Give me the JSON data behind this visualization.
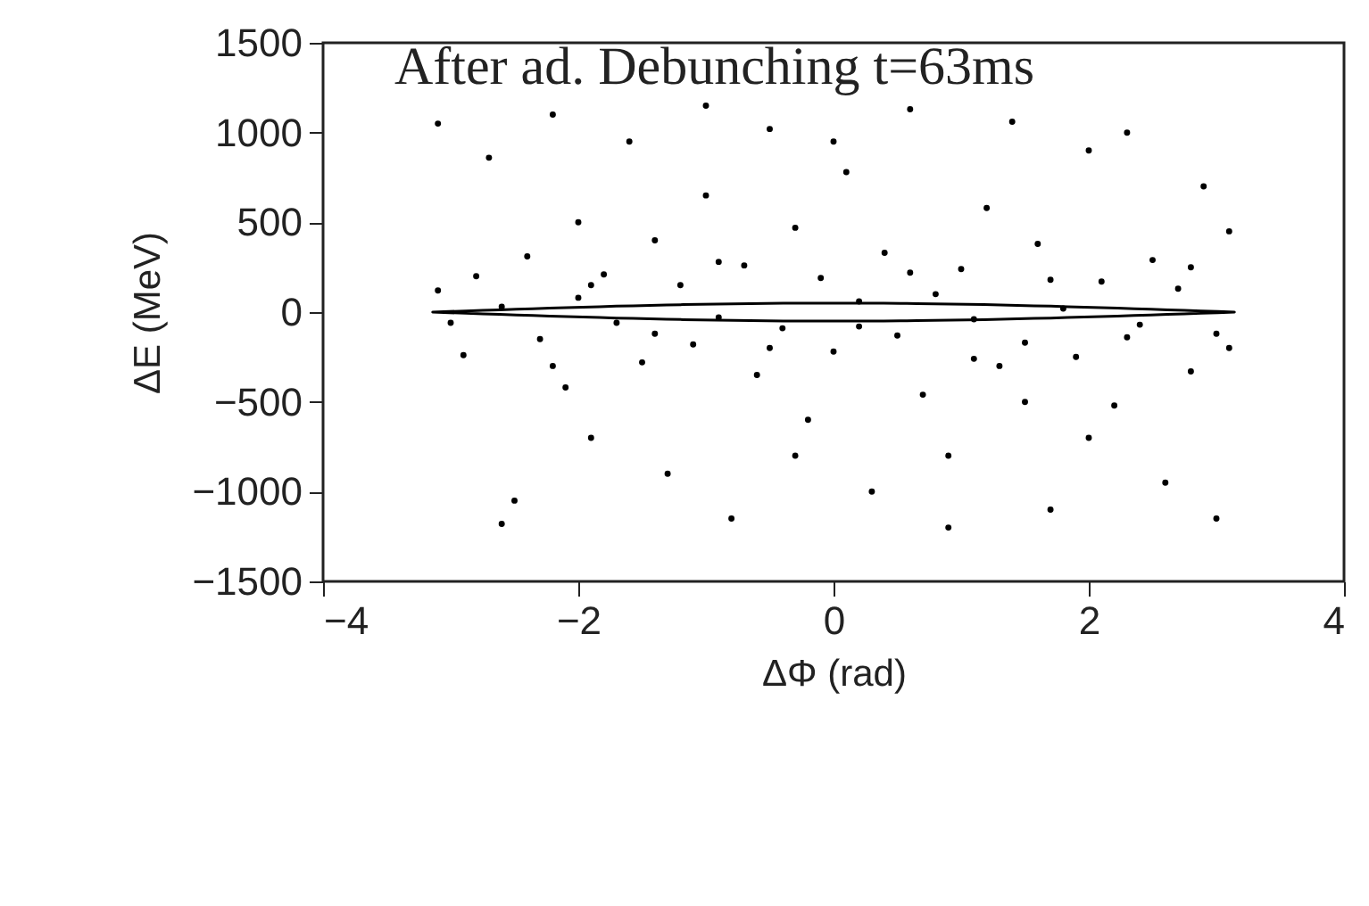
{
  "chart_data": {
    "type": "scatter",
    "title": "After ad. Debunching t=63ms",
    "xlabel": "ΔΦ (rad)",
    "ylabel": "ΔE (MeV)",
    "xlim": [
      -4,
      4
    ],
    "xticks": [
      -4,
      -2,
      0,
      2,
      4
    ],
    "ylim": [
      -1500,
      1500
    ],
    "yticks": [
      -1500,
      -1000,
      -500,
      0,
      500,
      1000,
      1500
    ],
    "grid": false,
    "marker": "circle",
    "series": [
      {
        "color": "#000000",
        "x": [
          -3.1,
          -2.9,
          -2.7,
          -2.6,
          -2.5,
          -2.4,
          -2.3,
          -2.2,
          -2.1,
          -2.0,
          -1.9,
          -1.8,
          -1.7,
          -1.6,
          -1.5,
          -1.4,
          -1.3,
          -1.2,
          -1.1,
          -1.0,
          -0.9,
          -0.8,
          -0.7,
          -0.6,
          -0.5,
          -0.4,
          -0.3,
          -0.2,
          -0.1,
          0.0,
          0.1,
          0.2,
          0.3,
          0.4,
          0.5,
          0.6,
          0.7,
          0.8,
          0.9,
          1.0,
          1.1,
          1.2,
          1.3,
          1.4,
          1.5,
          1.6,
          1.7,
          1.8,
          1.9,
          2.0,
          2.1,
          2.2,
          2.3,
          2.4,
          2.5,
          2.6,
          2.7,
          2.8,
          2.9,
          3.0,
          3.1,
          -3.0,
          -2.8,
          -2.2,
          -1.9,
          -1.4,
          -0.9,
          -0.5,
          0.2,
          0.6,
          1.1,
          1.7,
          2.3,
          2.8,
          3.1,
          -2.6,
          -1.0,
          0.9,
          2.0,
          -3.1,
          3.0,
          -2.0,
          1.5,
          0.0,
          -0.3
        ],
        "values": [
          120,
          -240,
          860,
          30,
          -1050,
          310,
          -150,
          1100,
          -420,
          80,
          -700,
          210,
          -60,
          950,
          -280,
          400,
          -900,
          150,
          -180,
          650,
          -30,
          -1150,
          260,
          -350,
          1020,
          -90,
          470,
          -600,
          190,
          -220,
          780,
          60,
          -1000,
          330,
          -130,
          1130,
          -460,
          100,
          -800,
          240,
          -40,
          580,
          -300,
          1060,
          -170,
          380,
          -1100,
          20,
          -250,
          900,
          170,
          -520,
          1000,
          -70,
          290,
          -950,
          130,
          -330,
          700,
          -120,
          450,
          -60,
          200,
          -300,
          150,
          -120,
          280,
          -200,
          -80,
          220,
          -260,
          180,
          -140,
          250,
          -200,
          -1180,
          1150,
          -1200,
          -700,
          1050,
          -1150,
          500,
          -500,
          950,
          -800
        ]
      }
    ]
  }
}
